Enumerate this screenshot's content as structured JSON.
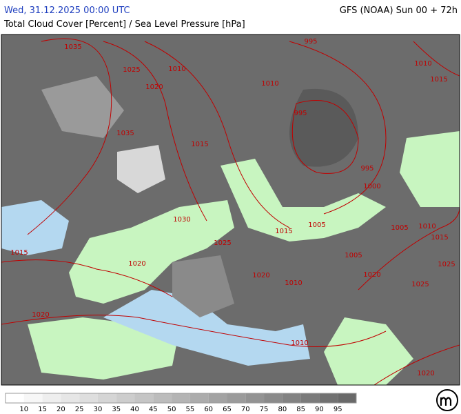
{
  "header": {
    "left": "Wed, 31.12.2025 00:00 UTC",
    "right": "GFS (NOAA) Sun 00 + 72h",
    "subtitle": "Total Cloud Cover [Percent] / Sea Level Pressure [hPa]"
  },
  "isobar_labels": [
    "1035",
    "1025",
    "1010",
    "1020",
    "1035",
    "995",
    "1010",
    "995",
    "1015",
    "995",
    "1000",
    "1030",
    "1015",
    "1005",
    "1025",
    "1015",
    "1020",
    "1020",
    "1010",
    "1005",
    "1005",
    "1010",
    "1015",
    "1025",
    "1020",
    "1025",
    "1020",
    "1010",
    "1020",
    "1010",
    "1015"
  ],
  "colorbar": {
    "labels": [
      10,
      15,
      20,
      25,
      30,
      35,
      40,
      45,
      50,
      55,
      60,
      65,
      70,
      75,
      80,
      85,
      90,
      95
    ]
  }
}
